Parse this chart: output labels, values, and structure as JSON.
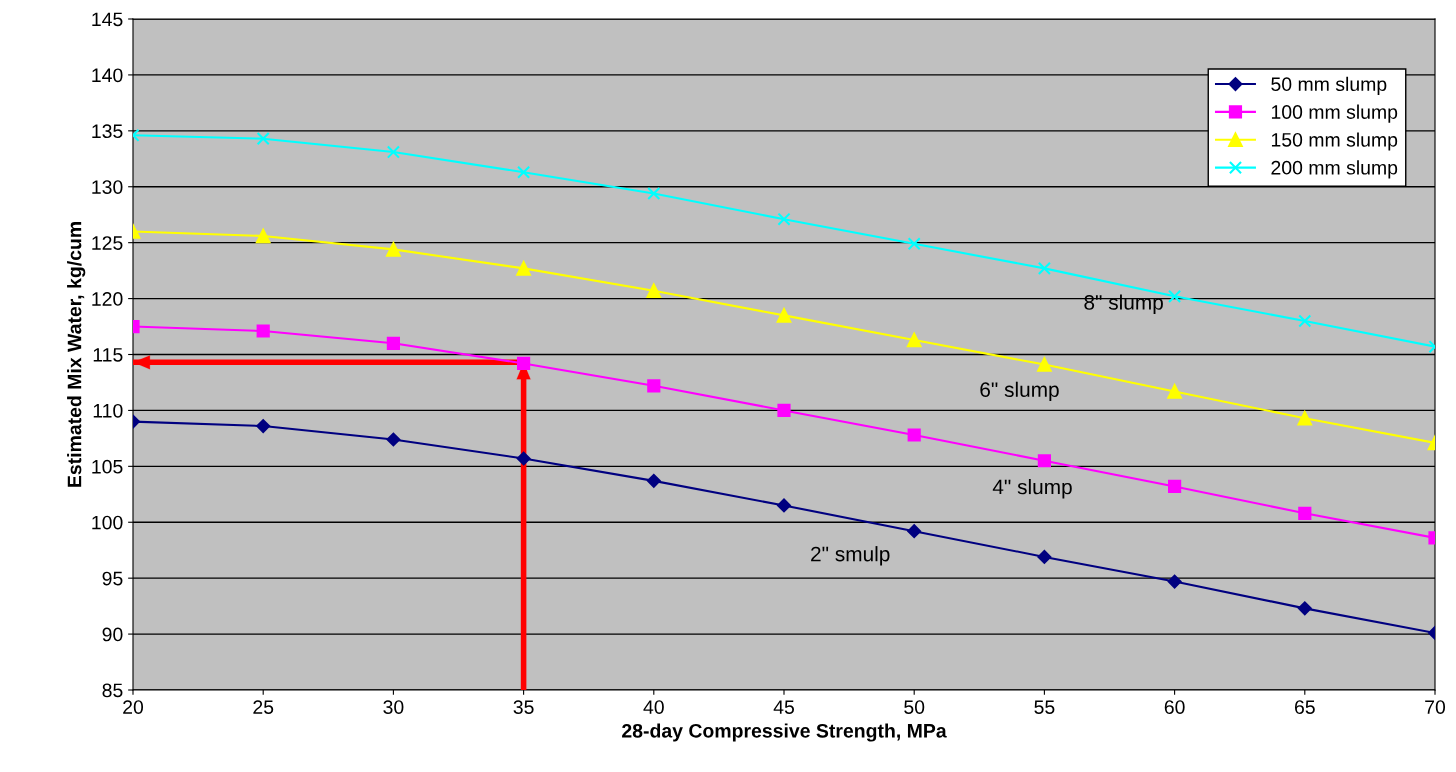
{
  "chart_data": {
    "type": "line",
    "xlabel": "28-day Compressive Strength, MPa",
    "ylabel": "Estimated Mix Water, kg/cum",
    "x": [
      20,
      25,
      30,
      35,
      40,
      45,
      50,
      55,
      60,
      65,
      70
    ],
    "xlim": [
      20,
      70
    ],
    "xticks": [
      20,
      25,
      30,
      35,
      40,
      45,
      50,
      55,
      60,
      65,
      70
    ],
    "ylim": [
      85,
      145
    ],
    "yticks": [
      85,
      90,
      95,
      100,
      105,
      110,
      115,
      120,
      125,
      130,
      135,
      140,
      145
    ],
    "grid": "y",
    "legend": "top right",
    "series": [
      {
        "name": "50 mm slump",
        "color": "#000080",
        "marker": "diamond",
        "values": [
          109.0,
          108.6,
          107.4,
          105.7,
          103.7,
          101.5,
          99.2,
          96.9,
          94.7,
          92.3,
          90.1
        ]
      },
      {
        "name": "100 mm slump",
        "color": "#ff00ff",
        "marker": "square",
        "values": [
          117.5,
          117.1,
          116.0,
          114.2,
          112.2,
          110.0,
          107.8,
          105.5,
          103.2,
          100.8,
          98.6
        ]
      },
      {
        "name": "150 mm slump",
        "color": "#ffff00",
        "marker": "triangle",
        "values": [
          126.0,
          125.6,
          124.4,
          122.7,
          120.7,
          118.5,
          116.3,
          114.1,
          111.7,
          109.3,
          107.1
        ]
      },
      {
        "name": "200 mm slump",
        "color": "#00ffff",
        "marker": "cross",
        "values": [
          134.6,
          134.3,
          133.1,
          131.3,
          129.4,
          127.1,
          124.9,
          122.7,
          120.2,
          118.0,
          115.7
        ]
      }
    ],
    "annotations": [
      "8\" slump",
      "6\" slump",
      "4\" slump",
      "2\" smulp"
    ],
    "ref_lines": [
      {
        "axis": "x",
        "value": 35,
        "color": "#ff0000"
      },
      {
        "axis": "y",
        "value": 114.3,
        "color": "#ff0000"
      }
    ]
  }
}
